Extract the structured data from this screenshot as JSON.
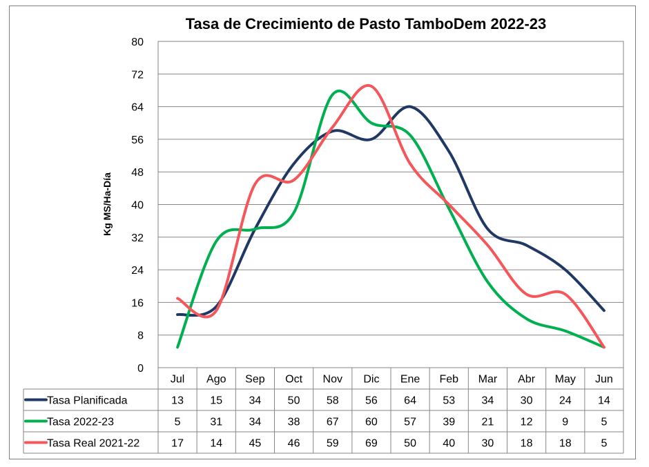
{
  "chart_data": {
    "type": "line",
    "title": "Tasa de Crecimiento de Pasto TamboDem 2022-23",
    "ylabel": "Kg MS/Ha-Día",
    "xlabel": "",
    "ylim": [
      0,
      80
    ],
    "yticks": [
      0,
      8,
      16,
      24,
      32,
      40,
      48,
      56,
      64,
      72,
      80
    ],
    "grid": true,
    "legend": "data-table-bottom",
    "categories": [
      "Jul",
      "Ago",
      "Sep",
      "Oct",
      "Nov",
      "Dic",
      "Ene",
      "Feb",
      "Mar",
      "Abr",
      "May",
      "Jun"
    ],
    "series": [
      {
        "name": "Tasa Planificada",
        "color": "#1f3864",
        "values": [
          13,
          15,
          34,
          50,
          58,
          56,
          64,
          53,
          34,
          30,
          24,
          14
        ]
      },
      {
        "name": "Tasa 2022-23",
        "color": "#00b050",
        "values": [
          5,
          31,
          34,
          38,
          67,
          60,
          57,
          39,
          21,
          12,
          9,
          5
        ]
      },
      {
        "name": "Tasa Real 2021-22",
        "color": "#f4565a",
        "values": [
          17,
          14,
          45,
          46,
          59,
          69,
          50,
          40,
          30,
          18,
          18,
          5
        ]
      }
    ]
  }
}
